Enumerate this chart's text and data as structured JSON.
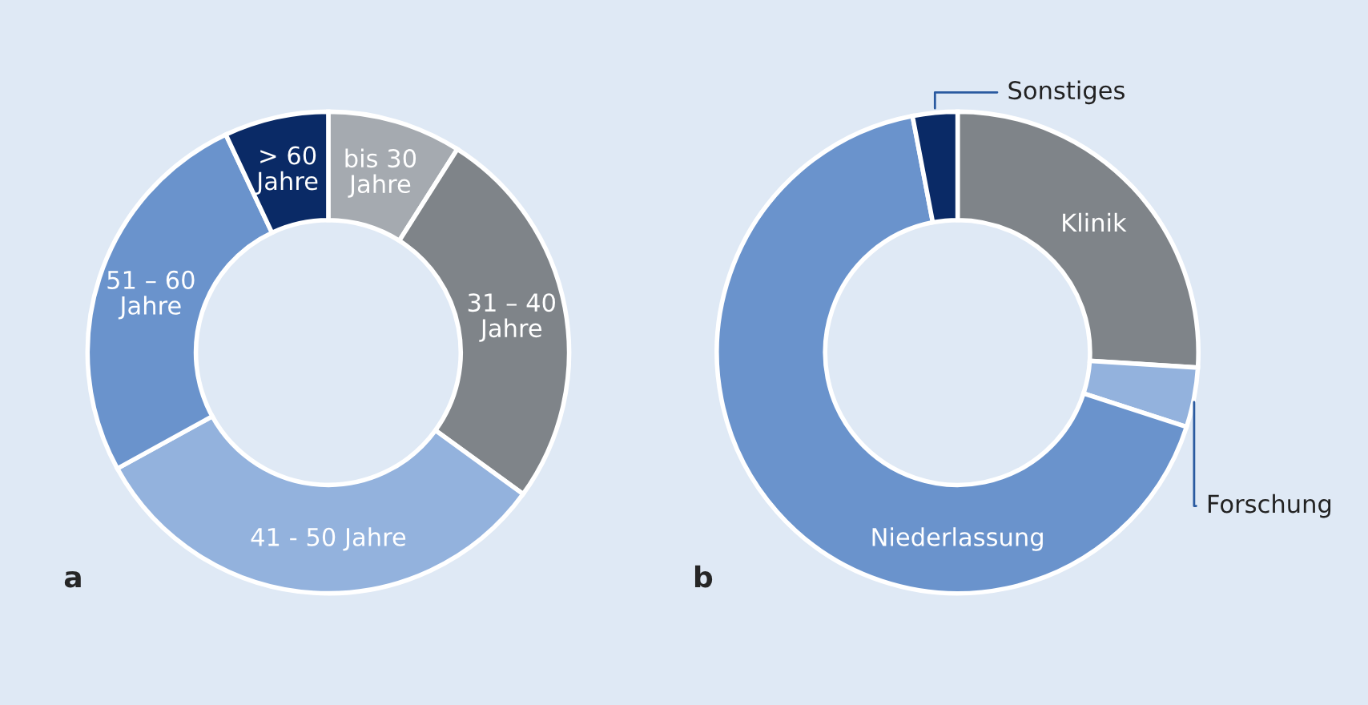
{
  "chart_data": [
    {
      "type": "donut",
      "categories": [
        "bis 30\nJahre",
        "31 – 40\nJahre",
        "41 - 50 Jahre",
        "51 – 60\nJahre",
        "> 60\nJahre"
      ],
      "values": [
        9,
        26,
        32,
        26,
        7
      ],
      "colors": [
        "#a5aab0",
        "#7f8489",
        "#93b2dd",
        "#6a93cc",
        "#0a2a66"
      ],
      "annotations": [
        "a"
      ]
    },
    {
      "type": "donut",
      "categories": [
        "Klinik",
        "Forschung",
        "Niederlassung",
        "Sonstiges"
      ],
      "values": [
        26,
        4,
        67,
        3
      ],
      "colors": [
        "#7f8489",
        "#93b2dd",
        "#6a93cc",
        "#0a2a66"
      ],
      "annotations": [
        "b"
      ]
    }
  ]
}
